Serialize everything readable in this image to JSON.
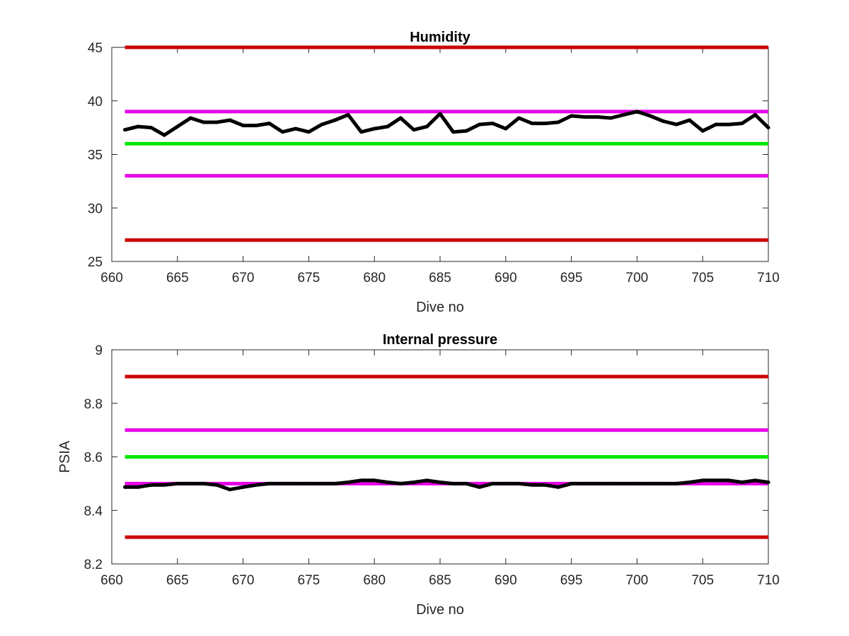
{
  "chart_data": [
    {
      "type": "line",
      "title": "Humidity",
      "xlabel": "Dive no",
      "ylabel": "",
      "xlim": [
        660,
        710
      ],
      "ylim": [
        25,
        45
      ],
      "xticks": [
        "660",
        "665",
        "670",
        "675",
        "680",
        "685",
        "690",
        "695",
        "700",
        "705",
        "710"
      ],
      "yticks": [
        "25",
        "30",
        "35",
        "40",
        "45"
      ],
      "grid": false,
      "reference_lines": [
        {
          "y": 45,
          "color": "#cc0000"
        },
        {
          "y": 39,
          "color": "#e600e6"
        },
        {
          "y": 36,
          "color": "#00e600"
        },
        {
          "y": 33,
          "color": "#e600e6"
        },
        {
          "y": 27,
          "color": "#cc0000"
        }
      ],
      "series": [
        {
          "color": "#000000",
          "x": [
            661,
            662,
            663,
            664,
            665,
            666,
            667,
            668,
            669,
            670,
            671,
            672,
            673,
            674,
            675,
            676,
            677,
            678,
            679,
            680,
            681,
            682,
            683,
            684,
            685,
            686,
            687,
            688,
            689,
            690,
            691,
            692,
            693,
            694,
            695,
            696,
            697,
            698,
            699,
            700,
            701,
            702,
            703,
            704,
            705,
            706,
            707,
            708,
            709,
            710
          ],
          "y": [
            37.3,
            37.6,
            37.5,
            36.8,
            37.6,
            38.4,
            38.0,
            38.0,
            38.2,
            37.7,
            37.7,
            37.9,
            37.1,
            37.4,
            37.1,
            37.8,
            38.2,
            38.7,
            37.1,
            37.4,
            37.6,
            38.4,
            37.3,
            37.6,
            38.8,
            37.1,
            37.2,
            37.8,
            37.9,
            37.4,
            38.4,
            37.9,
            37.9,
            38.0,
            38.6,
            38.5,
            38.5,
            38.4,
            38.7,
            39.0,
            38.6,
            38.1,
            37.8,
            38.2,
            37.2,
            37.8,
            37.8,
            37.9,
            38.7,
            37.5
          ]
        }
      ]
    },
    {
      "type": "line",
      "title": "Internal pressure",
      "xlabel": "Dive no",
      "ylabel": "PSIA",
      "xlim": [
        660,
        710
      ],
      "ylim": [
        8.2,
        9.0
      ],
      "xticks": [
        "660",
        "665",
        "670",
        "675",
        "680",
        "685",
        "690",
        "695",
        "700",
        "705",
        "710"
      ],
      "yticks": [
        "8.2",
        "8.4",
        "8.6",
        "8.8",
        "9"
      ],
      "grid": false,
      "reference_lines": [
        {
          "y": 8.9,
          "color": "#cc0000"
        },
        {
          "y": 8.7,
          "color": "#e600e6"
        },
        {
          "y": 8.6,
          "color": "#00e600"
        },
        {
          "y": 8.5,
          "color": "#e600e6"
        },
        {
          "y": 8.3,
          "color": "#cc0000"
        }
      ],
      "series": [
        {
          "color": "#000000",
          "x": [
            661,
            662,
            663,
            664,
            665,
            666,
            667,
            668,
            669,
            670,
            671,
            672,
            673,
            674,
            675,
            676,
            677,
            678,
            679,
            680,
            681,
            682,
            683,
            684,
            685,
            686,
            687,
            688,
            689,
            690,
            691,
            692,
            693,
            694,
            695,
            696,
            697,
            698,
            699,
            700,
            701,
            702,
            703,
            704,
            705,
            706,
            707,
            708,
            709,
            710
          ],
          "y": [
            8.487,
            8.487,
            8.495,
            8.495,
            8.5,
            8.5,
            8.5,
            8.495,
            8.478,
            8.487,
            8.495,
            8.5,
            8.5,
            8.5,
            8.5,
            8.5,
            8.5,
            8.505,
            8.512,
            8.512,
            8.505,
            8.5,
            8.505,
            8.512,
            8.505,
            8.5,
            8.5,
            8.487,
            8.5,
            8.5,
            8.5,
            8.495,
            8.495,
            8.487,
            8.5,
            8.5,
            8.5,
            8.5,
            8.5,
            8.5,
            8.5,
            8.5,
            8.5,
            8.505,
            8.512,
            8.512,
            8.512,
            8.505,
            8.512,
            8.505
          ]
        }
      ]
    }
  ]
}
